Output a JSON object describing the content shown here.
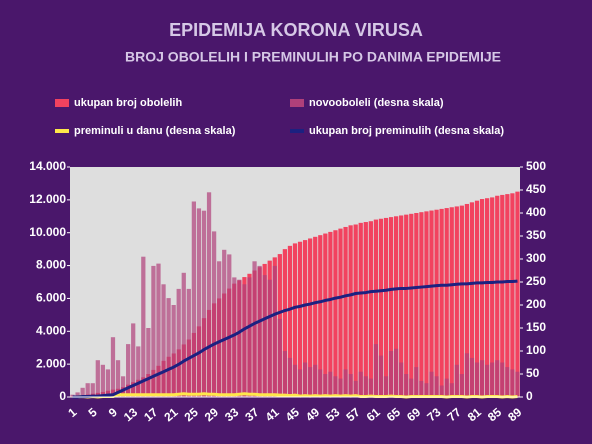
{
  "chart_data": {
    "type": "bar-line",
    "title": "EPIDEMIJA KORONA VIRUSA",
    "subtitle": "BROJ OBOLELIH I PREMINULIH PO DANIMA EPIDEMIJE",
    "categories": [
      "1",
      null,
      null,
      null,
      "5",
      null,
      null,
      null,
      "9",
      null,
      null,
      null,
      "13",
      null,
      null,
      null,
      "17",
      null,
      null,
      null,
      "21",
      null,
      null,
      null,
      "25",
      null,
      null,
      null,
      "29",
      null,
      null,
      null,
      "33",
      null,
      null,
      null,
      "37",
      null,
      null,
      null,
      "41",
      null,
      null,
      null,
      "45",
      null,
      null,
      null,
      "49",
      null,
      null,
      null,
      "53",
      null,
      null,
      null,
      "57",
      null,
      null,
      null,
      "61",
      null,
      null,
      null,
      "65",
      null,
      null,
      null,
      "69",
      null,
      null,
      null,
      "73",
      null,
      null,
      null,
      "77",
      null,
      null,
      null,
      "81",
      null,
      null,
      null,
      "85",
      null,
      null,
      null,
      "89"
    ],
    "series": [
      {
        "name": "ukupan broj obolelih",
        "kind": "bar",
        "axis": "y",
        "color": "#f2425f",
        "values": [
          50,
          70,
          100,
          150,
          200,
          250,
          300,
          380,
          450,
          500,
          600,
          750,
          900,
          1050,
          1200,
          1400,
          1650,
          1900,
          2200,
          2450,
          2650,
          2900,
          3200,
          3500,
          3900,
          4300,
          4800,
          5300,
          5700,
          6000,
          6300,
          6600,
          6900,
          7100,
          7300,
          7500,
          7700,
          7900,
          8100,
          8300,
          8500,
          8700,
          9000,
          9200,
          9350,
          9450,
          9550,
          9650,
          9750,
          9850,
          9950,
          10050,
          10150,
          10250,
          10350,
          10450,
          10500,
          10600,
          10650,
          10700,
          10800,
          10850,
          10900,
          10950,
          11000,
          11050,
          11100,
          11150,
          11200,
          11250,
          11300,
          11350,
          11400,
          11450,
          11500,
          11550,
          11600,
          11650,
          11750,
          11850,
          11950,
          12050,
          12100,
          12150,
          12250,
          12300,
          12350,
          12400,
          12500
        ]
      },
      {
        "name": "novooboleli (desna skala)",
        "kind": "bar",
        "axis": "y2",
        "color": "#b0407a",
        "values": [
          5,
          10,
          20,
          30,
          30,
          80,
          70,
          60,
          130,
          80,
          45,
          115,
          160,
          110,
          305,
          150,
          285,
          290,
          245,
          215,
          200,
          235,
          270,
          235,
          425,
          410,
          405,
          445,
          360,
          295,
          320,
          310,
          260,
          255,
          245,
          260,
          295,
          285,
          265,
          255,
          285,
          170,
          100,
          85,
          70,
          60,
          75,
          65,
          70,
          60,
          50,
          55,
          45,
          40,
          60,
          50,
          35,
          55,
          45,
          40,
          115,
          90,
          45,
          100,
          105,
          75,
          50,
          40,
          65,
          35,
          30,
          55,
          45,
          25,
          40,
          30,
          70,
          50,
          95,
          85,
          75,
          80,
          70,
          75,
          80,
          75,
          65,
          60,
          55
        ]
      },
      {
        "name": "preminuli u danu (desna skala)",
        "kind": "line",
        "axis": "y2",
        "color": "#ffe84a",
        "values": [
          0,
          0,
          1,
          0,
          1,
          0,
          1,
          1,
          1,
          5,
          5,
          5,
          5,
          5,
          5,
          5,
          5,
          5,
          5,
          5,
          5,
          6,
          7,
          6,
          6,
          6,
          7,
          6,
          6,
          5,
          5,
          5,
          5,
          6,
          7,
          6,
          6,
          5,
          5,
          5,
          5,
          4,
          4,
          3,
          4,
          2,
          3,
          2,
          3,
          2,
          3,
          2,
          3,
          2,
          3,
          2,
          3,
          1,
          1,
          2,
          1,
          1,
          1,
          2,
          1,
          1,
          0,
          1,
          1,
          1,
          1,
          1,
          1,
          1,
          0,
          1,
          1,
          1,
          0,
          1,
          1,
          0,
          1,
          1,
          1,
          0,
          1,
          0,
          1
        ]
      },
      {
        "name": "ukupan broj preminulih (desna skala)",
        "kind": "line",
        "axis": "y2",
        "color": "#1c2180",
        "values": [
          0,
          0,
          1,
          1,
          2,
          2,
          3,
          4,
          5,
          10,
          15,
          20,
          25,
          30,
          35,
          40,
          45,
          50,
          55,
          60,
          65,
          71,
          78,
          84,
          90,
          96,
          103,
          109,
          115,
          120,
          125,
          130,
          135,
          141,
          148,
          154,
          160,
          165,
          170,
          175,
          180,
          184,
          188,
          191,
          195,
          197,
          200,
          202,
          205,
          207,
          210,
          212,
          215,
          217,
          220,
          222,
          225,
          226,
          227,
          229,
          230,
          231,
          232,
          234,
          235,
          236,
          236,
          237,
          238,
          239,
          240,
          241,
          242,
          243,
          243,
          244,
          245,
          246,
          246,
          247,
          248,
          248,
          249,
          249,
          250,
          250,
          251,
          251,
          252
        ]
      }
    ],
    "ylim": [
      0,
      14000
    ],
    "yticks": [
      {
        "value": 0,
        "label": "0"
      },
      {
        "value": 2000,
        "label": "2.000"
      },
      {
        "value": 4000,
        "label": "4.000"
      },
      {
        "value": 6000,
        "label": "6.000"
      },
      {
        "value": 8000,
        "label": "8.000"
      },
      {
        "value": 10000,
        "label": "10.000"
      },
      {
        "value": 12000,
        "label": "12.000"
      },
      {
        "value": 14000,
        "label": "14.000"
      }
    ],
    "y2lim": [
      0,
      500
    ],
    "y2ticks": [
      0,
      50,
      100,
      150,
      200,
      250,
      300,
      350,
      400,
      450,
      500
    ],
    "legend": "top"
  }
}
